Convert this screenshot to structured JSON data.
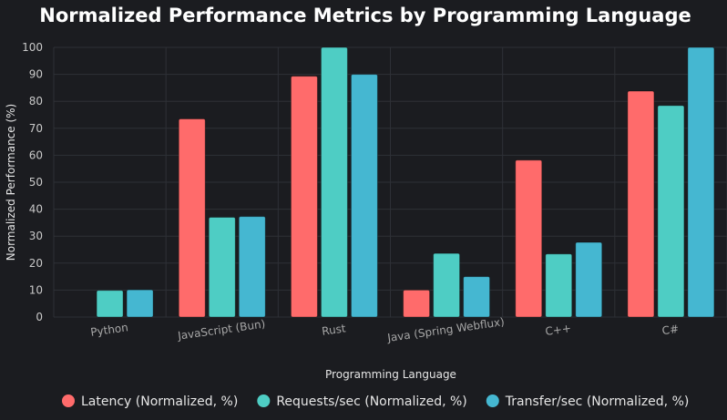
{
  "chart_data": {
    "type": "bar",
    "title": "Normalized Performance Metrics by Programming Language",
    "xlabel": "Programming Language",
    "ylabel": "Normalized Performance (%)",
    "ylim": [
      0,
      100
    ],
    "yticks": [
      0,
      10,
      20,
      30,
      40,
      50,
      60,
      70,
      80,
      90,
      100
    ],
    "grid": true,
    "legend_position": "bottom",
    "categories": [
      "Python",
      "JavaScript (Bun)",
      "Rust",
      "Java (Spring Webflux)",
      "C++",
      "C#"
    ],
    "series": [
      {
        "name": "Latency (Normalized, %)",
        "color": "#ff6b6b",
        "values": [
          0,
          73.5,
          89.3,
          10.0,
          58.2,
          83.8
        ]
      },
      {
        "name": "Requests/sec (Normalized, %)",
        "color": "#4ecdc4",
        "values": [
          9.9,
          37.0,
          100.0,
          23.6,
          23.4,
          78.4
        ]
      },
      {
        "name": "Transfer/sec (Normalized, %)",
        "color": "#45b7d1",
        "values": [
          10.1,
          37.3,
          90.0,
          15.0,
          27.7,
          100.0
        ]
      }
    ]
  }
}
